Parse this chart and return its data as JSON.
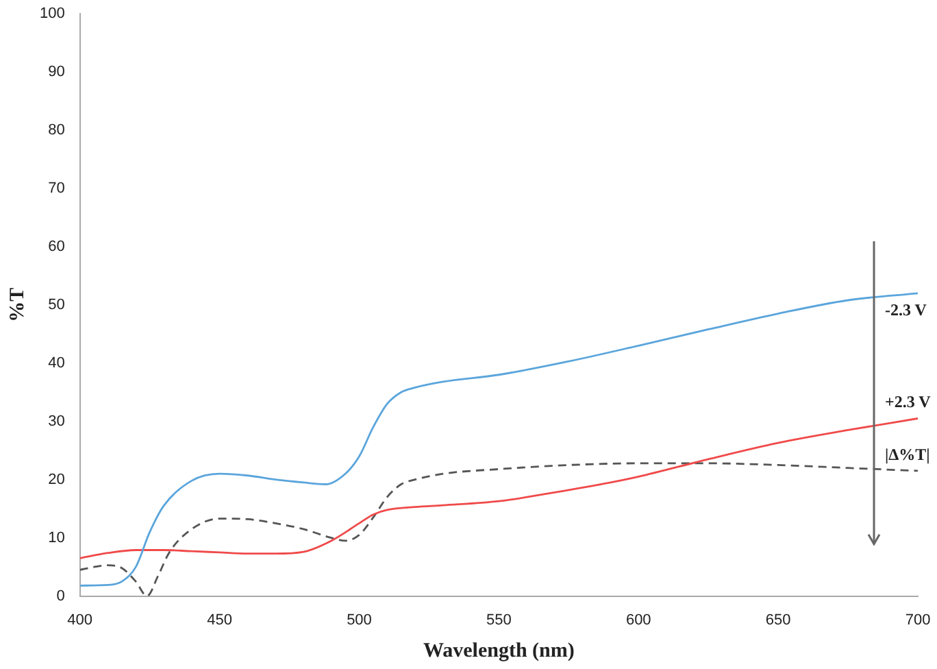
{
  "chart_data": {
    "type": "line",
    "xlabel": "Wavelength (nm)",
    "ylabel": "%T",
    "xlim": [
      400,
      700
    ],
    "xticks": [
      400,
      450,
      500,
      550,
      600,
      650,
      700
    ],
    "ylim": [
      0,
      100
    ],
    "yticks": [
      0,
      10,
      20,
      30,
      40,
      50,
      60,
      70,
      80,
      90,
      100
    ],
    "grid": false,
    "legend": false,
    "marker": "none",
    "series": [
      {
        "name": "-2.3 V",
        "color": "#5aa5dc",
        "line_style": "solid",
        "x": [
          400,
          410,
          415,
          420,
          425,
          430,
          440,
          450,
          460,
          470,
          480,
          488,
          495,
          500,
          505,
          510,
          515,
          520,
          530,
          550,
          575,
          600,
          625,
          650,
          675,
          700
        ],
        "values": [
          1.8,
          1.9,
          2.5,
          5,
          11,
          15.5,
          19.8,
          21,
          20.7,
          20,
          19.5,
          19.2,
          21,
          24,
          29,
          33,
          35,
          35.8,
          36.8,
          38,
          40.3,
          43,
          45.8,
          48.5,
          50.8,
          52
        ]
      },
      {
        "name": "+2.3 V",
        "color": "#f04a4a",
        "line_style": "solid",
        "x": [
          400,
          410,
          420,
          430,
          440,
          450,
          460,
          470,
          480,
          490,
          500,
          505,
          510,
          520,
          530,
          550,
          570,
          590,
          600,
          625,
          650,
          675,
          700
        ],
        "values": [
          6.5,
          7.4,
          7.9,
          7.9,
          7.7,
          7.5,
          7.3,
          7.3,
          7.6,
          9.5,
          12.5,
          14,
          14.8,
          15.3,
          15.6,
          16.3,
          17.8,
          19.5,
          20.5,
          23.5,
          26.3,
          28.5,
          30.5
        ]
      },
      {
        "name": "|Δ%T|",
        "color": "#555555",
        "line_style": "dashed",
        "x": [
          400,
          405,
          410,
          415,
          420,
          424,
          428,
          432,
          440,
          450,
          460,
          470,
          480,
          490,
          495,
          500,
          505,
          510,
          515,
          520,
          530,
          550,
          575,
          600,
          625,
          650,
          675,
          700
        ],
        "values": [
          4.5,
          5,
          5.3,
          4.8,
          2.5,
          0,
          3.5,
          7.5,
          11.5,
          13.3,
          13.2,
          12.5,
          11.5,
          10,
          9.5,
          10.5,
          13.5,
          17,
          19.2,
          20,
          21,
          21.8,
          22.5,
          22.8,
          22.8,
          22.5,
          22,
          21.5
        ]
      }
    ]
  }
}
